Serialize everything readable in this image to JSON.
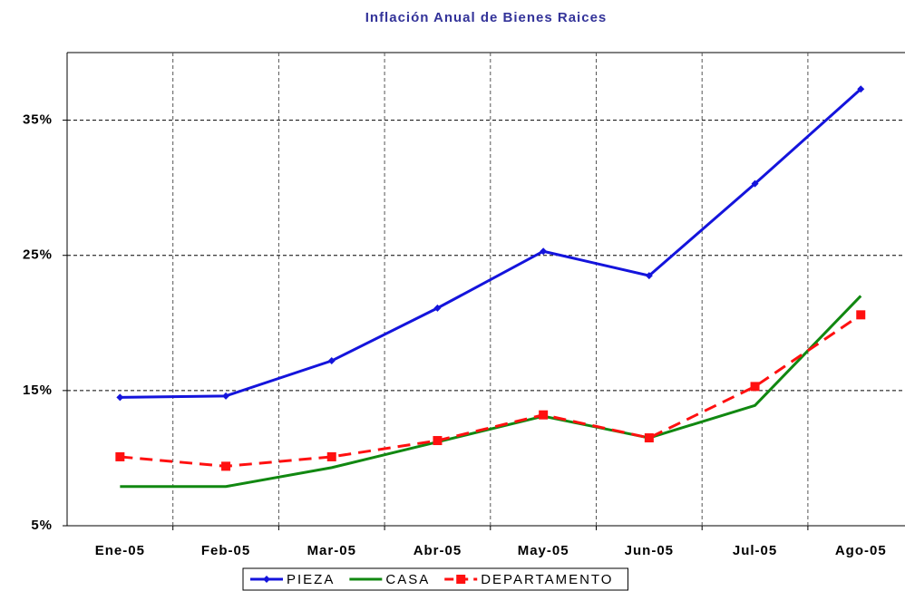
{
  "chart_data": {
    "type": "line",
    "title": "Inflación Anual de Bienes Raices",
    "categories": [
      "Ene-05",
      "Feb-05",
      "Mar-05",
      "Abr-05",
      "May-05",
      "Jun-05",
      "Jul-05",
      "Ago-05"
    ],
    "series": [
      {
        "name": "PIEZA",
        "color": "#1414dc",
        "marker": "diamond",
        "dash": false,
        "values": [
          14.5,
          14.6,
          17.2,
          21.1,
          25.3,
          23.5,
          30.3,
          37.3
        ]
      },
      {
        "name": "CASA",
        "color": "#118811",
        "marker": "none",
        "dash": false,
        "values": [
          7.9,
          7.9,
          9.3,
          11.2,
          13.1,
          11.5,
          13.9,
          22.0
        ]
      },
      {
        "name": "DEPARTAMENTO",
        "color": "#ff1010",
        "marker": "square",
        "dash": true,
        "values": [
          10.1,
          9.4,
          10.1,
          11.3,
          13.2,
          11.5,
          15.3,
          20.6
        ]
      }
    ],
    "ylim": [
      5,
      40
    ],
    "yticks": [
      {
        "value": 5,
        "label": "5%"
      },
      {
        "value": 15,
        "label": "15%"
      },
      {
        "value": 25,
        "label": "25%"
      },
      {
        "value": 35,
        "label": "35%"
      }
    ],
    "grid": true,
    "legend": "bottom"
  }
}
